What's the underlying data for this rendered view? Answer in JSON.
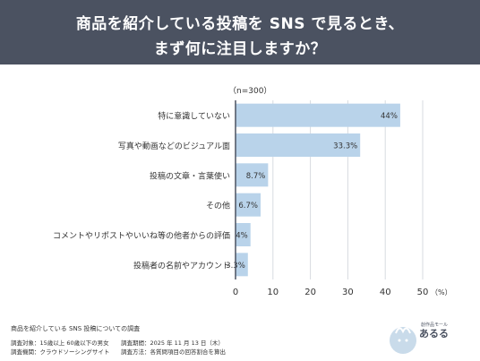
{
  "header": {
    "title_line1": "商品を紹介している投稿を SNS で見るとき、",
    "title_line2": "まず何に注目しますか？"
  },
  "chart_data": {
    "type": "bar",
    "orientation": "horizontal",
    "note": "（n=300）",
    "categories": [
      "特に意識していない",
      "写真や動画などのビジュアル面",
      "投稿の文章・言葉使い",
      "その他",
      "コメントやリポストやいいね等の他者からの評価",
      "投稿者の名前やアカウント"
    ],
    "values": [
      44,
      33.3,
      8.7,
      6.7,
      4,
      3.3
    ],
    "value_labels": [
      "44%",
      "33.3%",
      "8.7%",
      "6.7%",
      "4%",
      "3.3%"
    ],
    "xlim": [
      0,
      50
    ],
    "x_ticks": [
      "0",
      "10",
      "20",
      "30",
      "40",
      "50"
    ],
    "x_unit": "（%）",
    "grid": true,
    "bar_color": "#b9d3ea",
    "grid_color": "#d7dbe0"
  },
  "footer": {
    "title": "商品を紹介している SNS 投稿についての調査",
    "target": "調査対象：15歳以上 60歳以下の男女",
    "agency": "調査機関：クラウドソーシングサイト",
    "period": "調査期間：2025 年 11 月 13 日（木）",
    "method": "調査方法：各質問項目の回答割合を算出"
  },
  "logo": {
    "sub": "創作品モール",
    "brand": "あるる"
  },
  "colors": {
    "header_bg": "#4b5261",
    "axis": "#4b5261"
  }
}
